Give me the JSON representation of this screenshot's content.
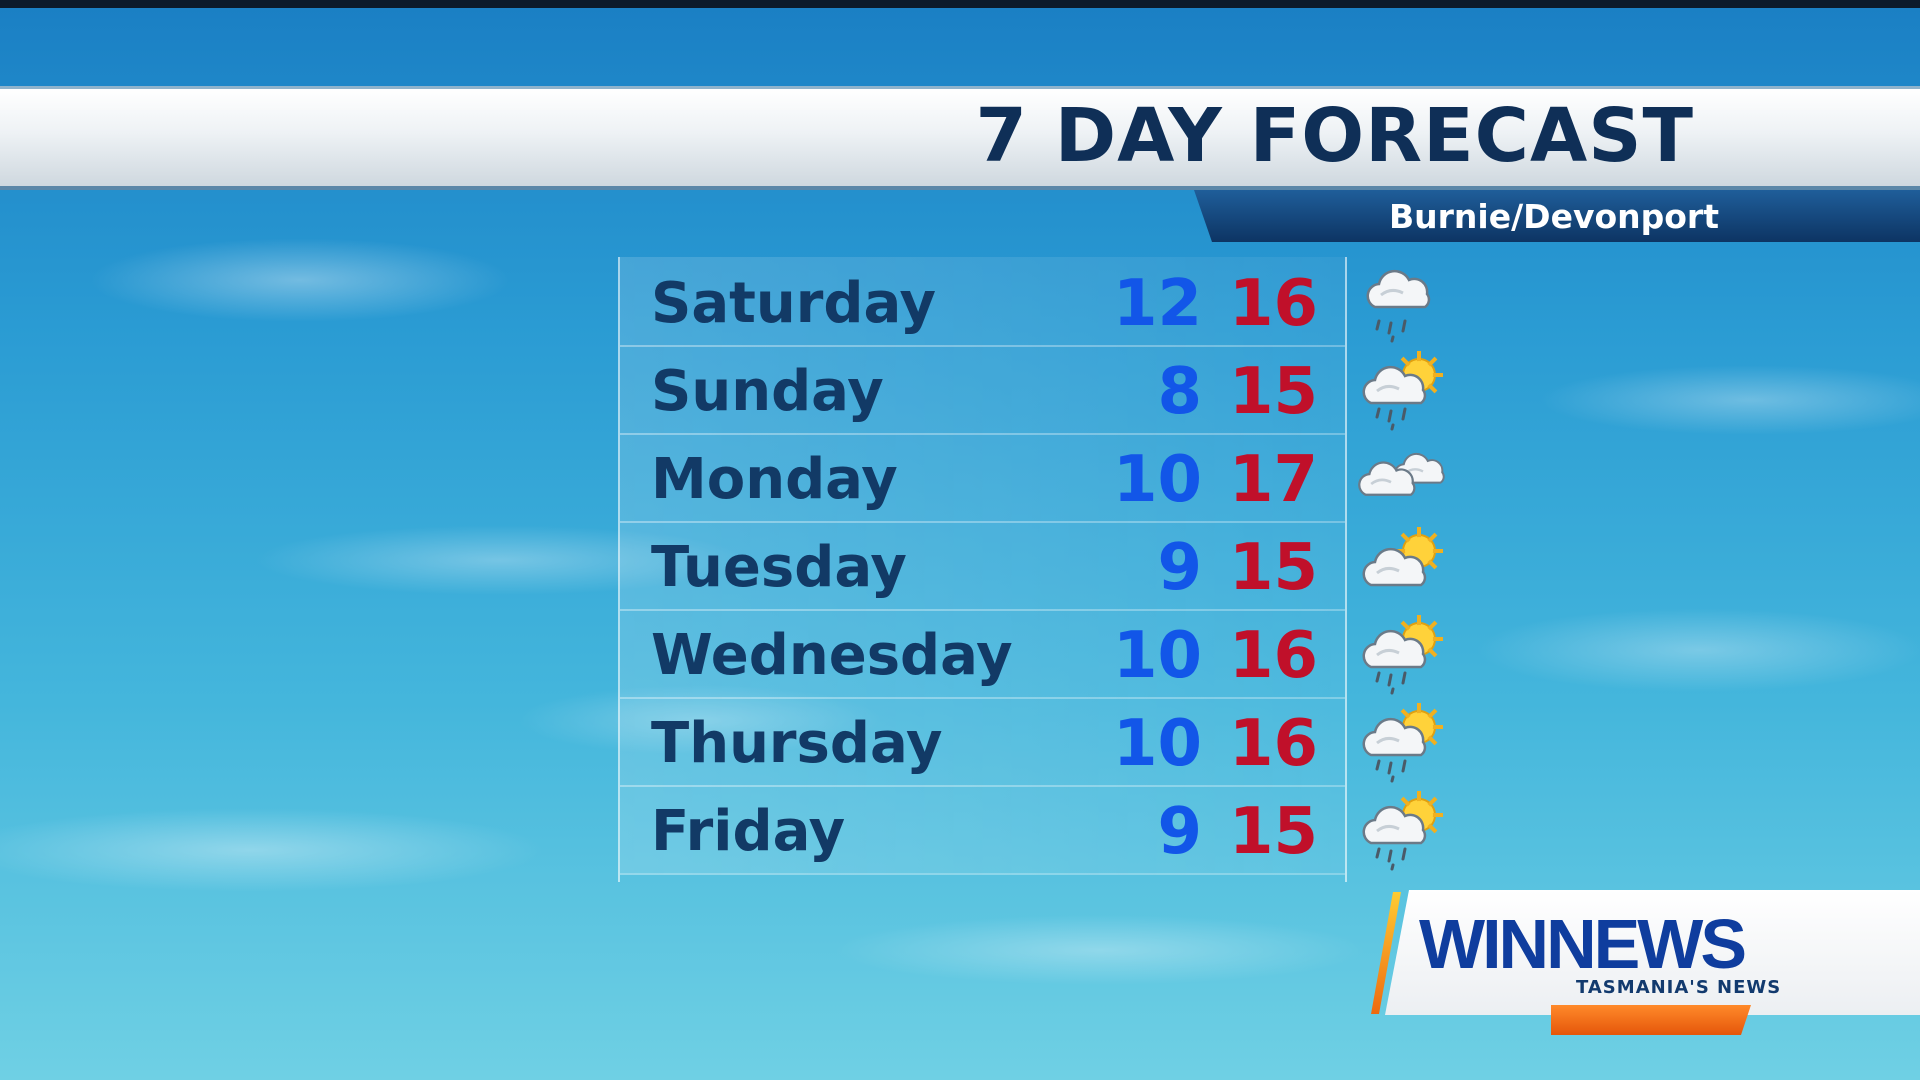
{
  "header": {
    "title": "7 DAY FORECAST",
    "location": "Burnie/Devonport"
  },
  "colors": {
    "min_temp": "#1256e8",
    "max_temp": "#c0102a",
    "day_text": "#123a66",
    "banner": "#0d3463"
  },
  "forecast": [
    {
      "day": "Saturday",
      "min": "12",
      "max": "16",
      "icon": "rain-shower-icon"
    },
    {
      "day": "Sunday",
      "min": "8",
      "max": "15",
      "icon": "partly-cloudy-showers-icon"
    },
    {
      "day": "Monday",
      "min": "10",
      "max": "17",
      "icon": "cloudy-icon"
    },
    {
      "day": "Tuesday",
      "min": "9",
      "max": "15",
      "icon": "partly-cloudy-icon"
    },
    {
      "day": "Wednesday",
      "min": "10",
      "max": "16",
      "icon": "partly-cloudy-showers-icon"
    },
    {
      "day": "Thursday",
      "min": "10",
      "max": "16",
      "icon": "partly-cloudy-showers-icon"
    },
    {
      "day": "Friday",
      "min": "9",
      "max": "15",
      "icon": "partly-cloudy-showers-icon"
    }
  ],
  "logo": {
    "name": "WINNEWS",
    "tagline": "TASMANIA'S NEWS"
  }
}
